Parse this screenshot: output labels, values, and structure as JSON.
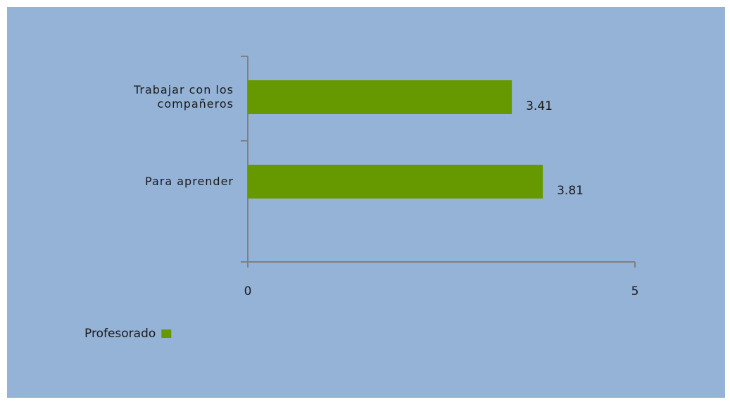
{
  "chart_data": {
    "type": "bar",
    "orientation": "horizontal",
    "categories": [
      "Trabajar con los compañeros",
      "Para aprender"
    ],
    "series": [
      {
        "name": "Profesorado",
        "color": "#669900",
        "values": [
          3.41,
          3.81
        ]
      }
    ],
    "xlim": [
      0,
      5
    ],
    "xticks": [
      0,
      5
    ],
    "legend": "bottom-left"
  }
}
